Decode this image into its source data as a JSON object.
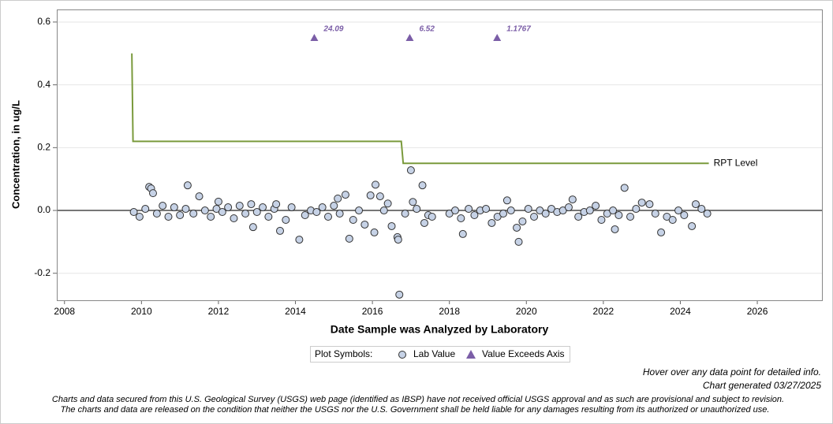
{
  "chart_data": {
    "type": "scatter",
    "x_label": "Date Sample was Analyzed by Laboratory",
    "y_label": "Concentration, in ug/L",
    "xlim": [
      2007.8,
      2027.7
    ],
    "ylim": [
      -0.286,
      0.64
    ],
    "xticks": [
      2008,
      2010,
      2012,
      2014,
      2016,
      2018,
      2020,
      2022,
      2024,
      2026
    ],
    "yticks": [
      -0.2,
      {
        "value": 0,
        "label": "0.0"
      },
      0.2,
      0.4,
      0.6
    ],
    "grid": true,
    "series": [
      {
        "name": "Lab Value",
        "color": "#c6d2e6",
        "x": [
          2009.8,
          2009.95,
          2010.1,
          2010.4,
          2010.55,
          2010.7,
          2010.85,
          2011.0,
          2011.15,
          2011.35,
          2011.65,
          2011.8,
          2011.95,
          2012.1,
          2012.25,
          2012.4,
          2012.55,
          2012.7,
          2012.85,
          2013.0,
          2013.15,
          2013.3,
          2013.45,
          2013.75,
          2013.9,
          2014.25,
          2014.4,
          2014.55,
          2014.7,
          2014.85,
          2015.0,
          2015.15,
          2015.5,
          2015.65,
          2015.8,
          2016.3,
          2016.5,
          2016.85,
          2017.15,
          2017.45,
          2017.55,
          2018.0,
          2018.15,
          2018.3,
          2018.5,
          2018.65,
          2018.8,
          2018.95,
          2019.1,
          2019.25,
          2019.4,
          2019.6,
          2019.9,
          2020.05,
          2020.2,
          2020.35,
          2020.5,
          2020.65,
          2020.8,
          2020.95,
          2021.1,
          2021.35,
          2021.5,
          2021.65,
          2021.8,
          2021.95,
          2022.1,
          2022.25,
          2022.4,
          2022.7,
          2022.85,
          2023.35,
          2023.65,
          2023.8,
          2023.95,
          2024.1,
          2024.55,
          2024.7,
          2010.2,
          2010.25,
          2010.3,
          2011.2,
          2011.5,
          2012.0,
          2013.5,
          2012.9,
          2013.6,
          2014.1,
          2015.1,
          2015.3,
          2015.4,
          2015.95,
          2016.05,
          2016.08,
          2016.2,
          2016.4,
          2016.65,
          2016.67,
          2016.7,
          2017.0,
          2017.05,
          2017.3,
          2017.35,
          2018.35,
          2019.5,
          2019.75,
          2019.8,
          2021.2,
          2022.55,
          2022.3,
          2023.0,
          2023.2,
          2023.5,
          2024.3,
          2024.4
        ],
        "values": [
          -0.005,
          -0.02,
          0.005,
          -0.01,
          0.015,
          -0.02,
          0.01,
          -0.015,
          0.005,
          -0.01,
          0.0,
          -0.02,
          0.005,
          -0.005,
          0.01,
          -0.025,
          0.015,
          -0.01,
          0.02,
          -0.005,
          0.01,
          -0.02,
          0.005,
          -0.03,
          0.01,
          -0.015,
          0.0,
          -0.005,
          0.01,
          -0.02,
          0.015,
          -0.01,
          -0.03,
          0.0,
          -0.045,
          0.0,
          -0.05,
          -0.01,
          0.005,
          -0.015,
          -0.02,
          -0.01,
          0.0,
          -0.025,
          0.005,
          -0.015,
          0.0,
          0.005,
          -0.04,
          -0.02,
          -0.01,
          0.0,
          -0.035,
          0.005,
          -0.02,
          0.0,
          -0.01,
          0.005,
          -0.005,
          0.0,
          0.01,
          -0.02,
          -0.005,
          0.0,
          0.015,
          -0.03,
          -0.01,
          0.0,
          -0.015,
          -0.02,
          0.005,
          -0.01,
          -0.02,
          -0.03,
          0.0,
          -0.015,
          0.005,
          -0.01,
          0.075,
          0.07,
          0.055,
          0.08,
          0.045,
          0.028,
          0.02,
          -0.053,
          -0.065,
          -0.093,
          0.038,
          0.05,
          -0.09,
          0.048,
          -0.07,
          0.082,
          0.045,
          0.022,
          -0.085,
          -0.093,
          -0.268,
          0.128,
          0.027,
          0.08,
          -0.04,
          -0.075,
          0.032,
          -0.055,
          -0.1,
          0.035,
          0.072,
          -0.06,
          0.025,
          0.02,
          -0.07,
          -0.05,
          0.02
        ]
      }
    ],
    "rpt": {
      "name": "RPT Level",
      "color": "#7a9a3c",
      "x": [
        2009.75,
        2009.78,
        2016.75,
        2016.8,
        2024.74
      ],
      "values": [
        0.5,
        0.22,
        0.22,
        0.15,
        0.15
      ]
    },
    "exceeds": {
      "name": "Value Exceeds Axis",
      "color": "#7b5ea7",
      "x": [
        2014.49,
        2016.97,
        2019.24
      ],
      "values": [
        24.09,
        6.52,
        1.1767
      ],
      "value_labels": [
        "24.09",
        "6.52",
        "1.1767"
      ]
    },
    "legend_title": "Plot Symbols:",
    "notes": [
      "Hover over any data point for detailed info.",
      "Chart generated 03/27/2025"
    ],
    "disclaimer": [
      "Charts and data secured from this U.S. Geological Survey (USGS) web page (identified as IBSP) have not received official USGS approval and as such are provisional and subject to revision.",
      "The charts and data are released on the condition that neither the USGS nor the U.S. Government shall be held liable for any damages resulting from its authorized or unauthorized use."
    ]
  }
}
